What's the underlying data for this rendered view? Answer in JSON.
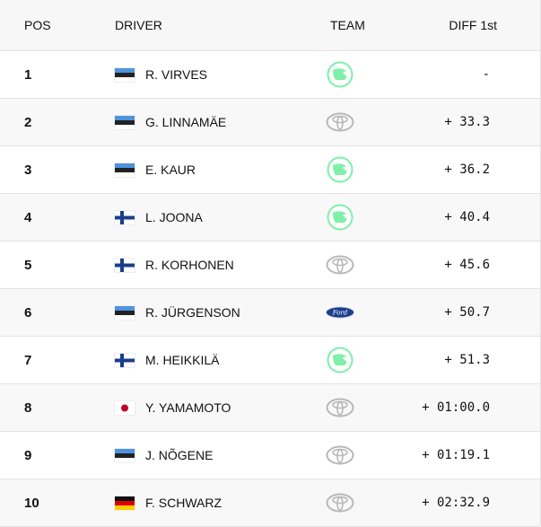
{
  "header": {
    "pos": "POS",
    "driver": "DRIVER",
    "team": "TEAM",
    "diff": "DIFF 1st"
  },
  "colors": {
    "skoda": "#7ff0a8",
    "ford": "#1c3f8c",
    "toyota": "#b8b8b8"
  },
  "rows": [
    {
      "pos": "1",
      "flag": "EE",
      "name": "R. VIRVES",
      "team": "skoda-logo",
      "diff": "-"
    },
    {
      "pos": "2",
      "flag": "EE",
      "name": "G. LINNAMÄE",
      "team": "toyota-logo",
      "diff": "+ 33.3"
    },
    {
      "pos": "3",
      "flag": "EE",
      "name": "E. KAUR",
      "team": "skoda-logo",
      "diff": "+ 36.2"
    },
    {
      "pos": "4",
      "flag": "FI",
      "name": "L. JOONA",
      "team": "skoda-logo",
      "diff": "+ 40.4"
    },
    {
      "pos": "5",
      "flag": "FI",
      "name": "R. KORHONEN",
      "team": "toyota-logo",
      "diff": "+ 45.6"
    },
    {
      "pos": "6",
      "flag": "EE",
      "name": "R. JÜRGENSON",
      "team": "ford-logo",
      "diff": "+ 50.7"
    },
    {
      "pos": "7",
      "flag": "FI",
      "name": "M. HEIKKILÄ",
      "team": "skoda-logo",
      "diff": "+ 51.3"
    },
    {
      "pos": "8",
      "flag": "JP",
      "name": "Y. YAMAMOTO",
      "team": "toyota-logo",
      "diff": "+ 01:00.0"
    },
    {
      "pos": "9",
      "flag": "EE",
      "name": "J. NÕGENE",
      "team": "toyota-logo",
      "diff": "+ 01:19.1"
    },
    {
      "pos": "10",
      "flag": "DE",
      "name": "F. SCHWARZ",
      "team": "toyota-logo",
      "diff": "+ 02:32.9"
    }
  ]
}
